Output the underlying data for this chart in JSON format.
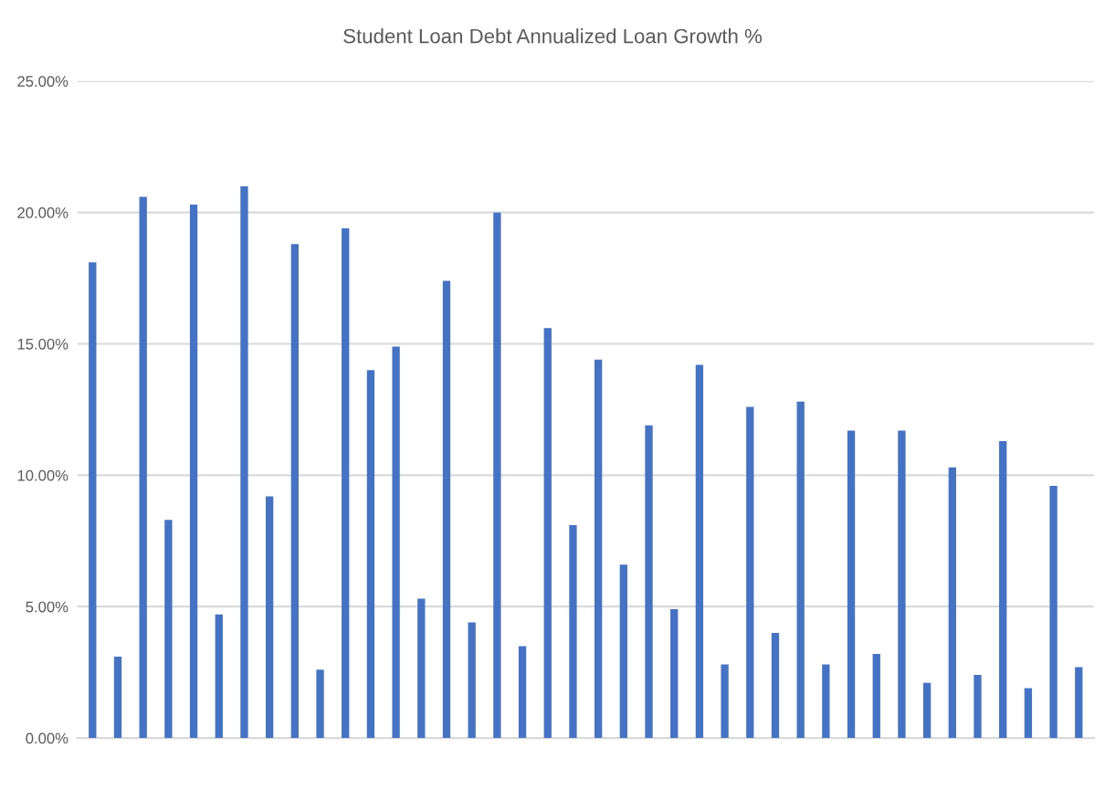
{
  "chart_data": {
    "type": "bar",
    "title": "Student Loan Debt Annualized Loan Growth %",
    "categories": [
      null,
      null,
      null,
      null,
      null,
      null,
      null,
      null,
      null,
      null,
      null,
      null,
      null,
      null,
      null,
      null,
      null,
      null,
      null,
      null,
      null,
      null,
      null,
      null,
      null,
      null,
      null,
      null,
      null,
      null,
      null,
      null,
      null,
      null,
      null,
      null,
      null,
      null,
      null,
      null
    ],
    "values": [
      18.1,
      3.1,
      20.6,
      8.3,
      20.3,
      4.7,
      21.0,
      9.2,
      18.8,
      2.6,
      19.4,
      14.0,
      14.9,
      5.3,
      17.4,
      4.4,
      20.0,
      3.5,
      15.6,
      8.1,
      14.4,
      6.6,
      11.9,
      4.9,
      14.2,
      2.8,
      12.6,
      4.0,
      12.8,
      2.8,
      11.7,
      3.2,
      11.7,
      2.1,
      10.3,
      2.4,
      11.3,
      1.9,
      9.6,
      2.7
    ],
    "color": "#4472c4",
    "ylim": [
      0,
      25
    ],
    "yticks": [
      {
        "value": 0,
        "label": "0.00%"
      },
      {
        "value": 5,
        "label": "5.00%"
      },
      {
        "value": 10,
        "label": "10.00%"
      },
      {
        "value": 15,
        "label": "15.00%"
      },
      {
        "value": 20,
        "label": "20.00%"
      },
      {
        "value": 25,
        "label": "25.00%"
      }
    ],
    "grid": "y"
  }
}
